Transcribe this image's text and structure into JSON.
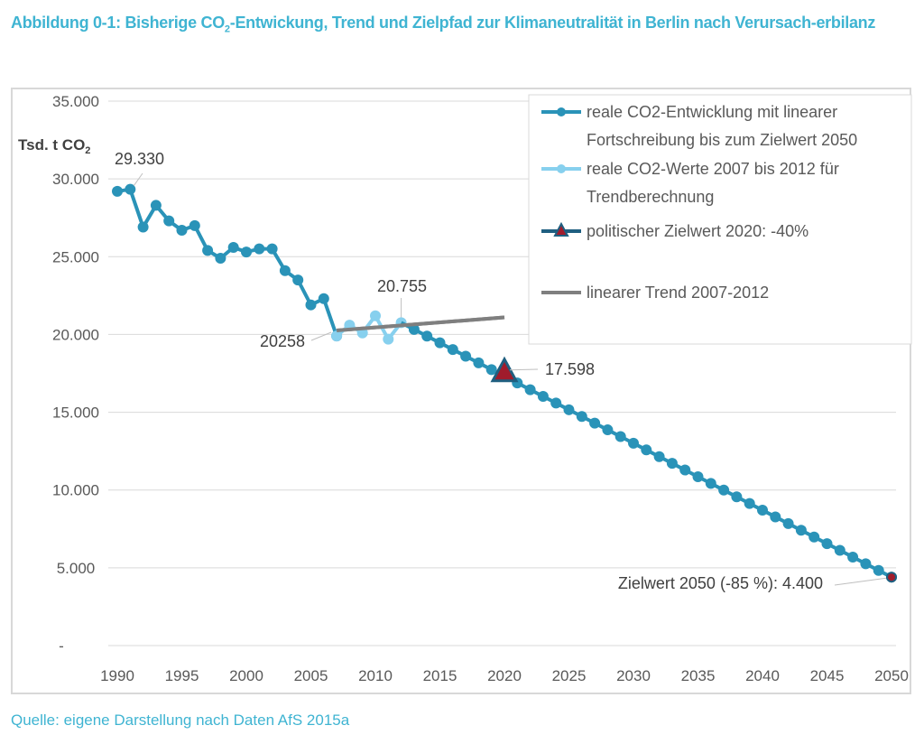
{
  "title": {
    "prefix": "Abbildung 0-1: Bisherige CO",
    "sub": "2",
    "suffix": "-Entwickung, Trend und Zielpfad zur Klimaneutralität in Berlin nach Verursach-erbilanz"
  },
  "source": "Quelle: eigene Darstellung nach Daten AfS 2015a",
  "colors": {
    "main": "#2a93b8",
    "trend_points": "#87d0ee",
    "trend_line": "#7f7f7f",
    "target_fill": "#a01c2c",
    "target_border": "#1f5f80",
    "title": "#3fb4d2",
    "grid": "#d9d9d9"
  },
  "chart_data": {
    "type": "line",
    "title": "Bisherige CO2-Entwickung, Trend und Zielpfad zur Klimaneutralität in Berlin nach Verursacherbilanz",
    "ylabel": "Tsd. t CO2",
    "xlabel": "",
    "xlim": [
      1990,
      2050
    ],
    "ylim": [
      0,
      35000
    ],
    "x_ticks": [
      "1990",
      "1995",
      "2000",
      "2005",
      "2010",
      "2015",
      "2020",
      "2025",
      "2030",
      "2035",
      "2040",
      "2045",
      "2050"
    ],
    "y_ticks": [
      "-",
      "5.000",
      "10.000",
      "15.000",
      "20.000",
      "25.000",
      "30.000",
      "35.000"
    ],
    "grid": true,
    "legend_position": "top-right",
    "series": [
      {
        "name": "reale CO2-Entwicklung mit linearer Fortschreibung bis zum Zielwert 2050",
        "kind": "line-marker",
        "historic_x": [
          1990,
          1991,
          1992,
          1993,
          1994,
          1995,
          1996,
          1997,
          1998,
          1999,
          2000,
          2001,
          2002,
          2003,
          2004,
          2005,
          2006,
          2007
        ],
        "historic_y": [
          29200,
          29330,
          26900,
          28300,
          27300,
          26700,
          27000,
          25400,
          24900,
          25600,
          25300,
          25500,
          25500,
          24100,
          23500,
          21900,
          22300,
          19900
        ],
        "projection": {
          "from_year": 2012,
          "from_value": 20755,
          "to_year": 2050,
          "to_value": 4400
        }
      },
      {
        "name": "reale CO2-Werte 2007 bis 2012 für Trendberechnung",
        "kind": "line-marker",
        "x": [
          2007,
          2008,
          2009,
          2010,
          2011,
          2012
        ],
        "y": [
          19900,
          20600,
          20100,
          21200,
          19700,
          20755
        ]
      },
      {
        "name": "politischer Zielwert 2020: -40%",
        "kind": "triangle-marker",
        "x": [
          2020
        ],
        "y": [
          17598
        ]
      },
      {
        "name": "lineares Trend 2007-2012",
        "legend_label": "linearer Trend 2007-2012",
        "kind": "line",
        "x": [
          2007,
          2020
        ],
        "y": [
          20258,
          21100
        ]
      }
    ],
    "annotations": [
      {
        "text": "29.330",
        "x": 1991,
        "y": 29330
      },
      {
        "text": "20.755",
        "x": 2012,
        "y": 20755
      },
      {
        "text": "20258",
        "x": 2007,
        "y": 20258
      },
      {
        "text": "17.598",
        "x": 2020,
        "y": 17598
      },
      {
        "text": "Zielwert 2050 (-85 %):  4.400",
        "x": 2050,
        "y": 4400
      }
    ]
  },
  "legend": [
    {
      "line1": "reale CO2-Entwicklung mit linearer",
      "line2": "Fortschreibung bis zum Zielwert 2050"
    },
    {
      "line1": "reale CO2-Werte 2007 bis 2012 für",
      "line2": "Trendberechnung"
    },
    {
      "line1": "politischer Zielwert 2020: -40%",
      "line2": ""
    },
    {
      "line1": "linearer Trend 2007-2012",
      "line2": ""
    }
  ],
  "yaxis_unit": {
    "text": "Tsd. t CO",
    "sub": "2"
  }
}
